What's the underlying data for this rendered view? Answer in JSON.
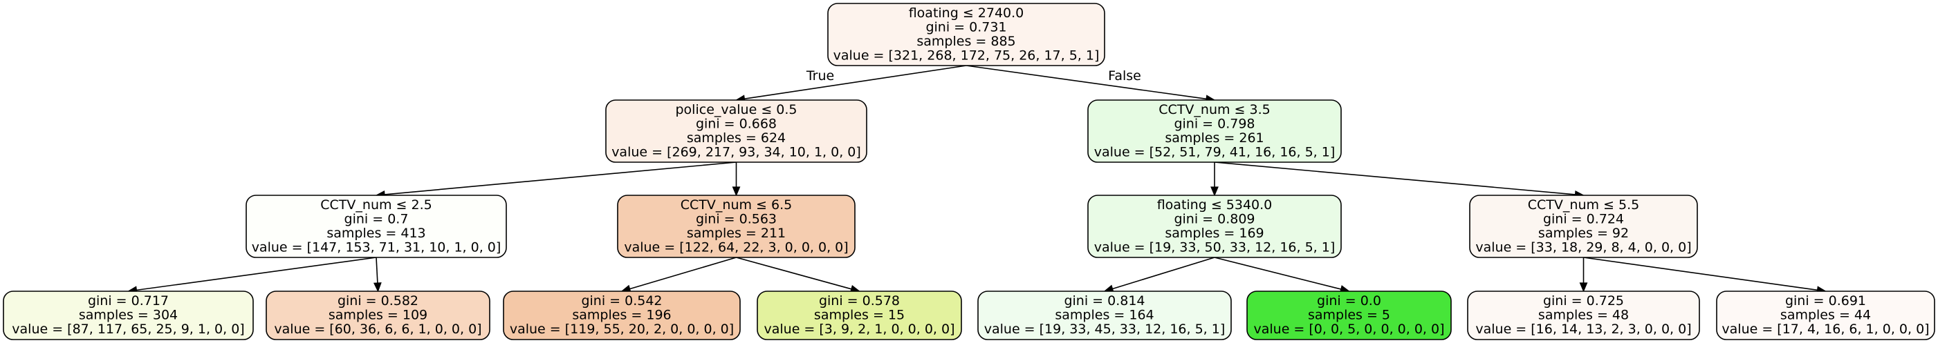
{
  "chart_data": {
    "type": "decision-tree",
    "nodes": [
      {
        "id": 0,
        "lines": [
          "floating ≤ 2740.0",
          "gini = 0.731",
          "samples = 885",
          "value = [321, 268, 172, 75, 26, 17, 5, 1]"
        ],
        "color": "#fdf3ed"
      },
      {
        "id": 1,
        "lines": [
          "police_value ≤ 0.5",
          "gini = 0.668",
          "samples = 624",
          "value = [269, 217, 93, 34, 10, 1, 0, 0]"
        ],
        "color": "#fcefe6"
      },
      {
        "id": 2,
        "lines": [
          "CCTV_num ≤ 3.5",
          "gini = 0.798",
          "samples = 261",
          "value = [52, 51, 79, 41, 16, 16, 5, 1]"
        ],
        "color": "#e6fbe3"
      },
      {
        "id": 3,
        "lines": [
          "CCTV_num ≤ 2.5",
          "gini = 0.7",
          "samples = 413",
          "value = [147, 153, 71, 31, 10, 1, 0, 0]"
        ],
        "color": "#fefffb"
      },
      {
        "id": 4,
        "lines": [
          "CCTV_num ≤ 6.5",
          "gini = 0.563",
          "samples = 211",
          "value = [122, 64, 22, 3, 0, 0, 0, 0]"
        ],
        "color": "#f5cdb0"
      },
      {
        "id": 5,
        "lines": [
          "floating ≤ 5340.0",
          "gini = 0.809",
          "samples = 169",
          "value = [19, 33, 50, 33, 12, 16, 5, 1]"
        ],
        "color": "#e9fbe6"
      },
      {
        "id": 6,
        "lines": [
          "CCTV_num ≤ 5.5",
          "gini = 0.724",
          "samples = 92",
          "value = [33, 18, 29, 8, 4, 0, 0, 0]"
        ],
        "color": "#fcf6f1"
      },
      {
        "id": 7,
        "lines": [
          "gini = 0.717",
          "samples = 304",
          "value = [87, 117, 65, 25, 9, 1, 0, 0]"
        ],
        "color": "#f7fbe3"
      },
      {
        "id": 8,
        "lines": [
          "gini = 0.582",
          "samples = 109",
          "value = [60, 36, 6, 6, 1, 0, 0, 0]"
        ],
        "color": "#f8d7bf"
      },
      {
        "id": 9,
        "lines": [
          "gini = 0.542",
          "samples = 196",
          "value = [119, 55, 20, 2, 0, 0, 0, 0]"
        ],
        "color": "#f4c8a7"
      },
      {
        "id": 10,
        "lines": [
          "gini = 0.578",
          "samples = 15",
          "value = [3, 9, 2, 1, 0, 0, 0, 0]"
        ],
        "color": "#e3f29e"
      },
      {
        "id": 11,
        "lines": [
          "gini = 0.814",
          "samples = 164",
          "value = [19, 33, 45, 33, 12, 16, 5, 1]"
        ],
        "color": "#effcee"
      },
      {
        "id": 12,
        "lines": [
          "gini = 0.0",
          "samples = 5",
          "value = [0, 0, 5, 0, 0, 0, 0, 0]"
        ],
        "color": "#47e539"
      },
      {
        "id": 13,
        "lines": [
          "gini = 0.725",
          "samples = 48",
          "value = [16, 14, 13, 2, 3, 0, 0, 0]"
        ],
        "color": "#fdf8f4"
      },
      {
        "id": 14,
        "lines": [
          "gini = 0.691",
          "samples = 44",
          "value = [17, 4, 16, 6, 1, 0, 0, 0]"
        ],
        "color": "#fef9f6"
      }
    ],
    "edges": [
      {
        "from": 0,
        "to": 1,
        "label": "True"
      },
      {
        "from": 0,
        "to": 2,
        "label": "False"
      },
      {
        "from": 1,
        "to": 3,
        "label": ""
      },
      {
        "from": 1,
        "to": 4,
        "label": ""
      },
      {
        "from": 2,
        "to": 5,
        "label": ""
      },
      {
        "from": 2,
        "to": 6,
        "label": ""
      },
      {
        "from": 3,
        "to": 7,
        "label": ""
      },
      {
        "from": 3,
        "to": 8,
        "label": ""
      },
      {
        "from": 4,
        "to": 9,
        "label": ""
      },
      {
        "from": 4,
        "to": 10,
        "label": ""
      },
      {
        "from": 5,
        "to": 11,
        "label": ""
      },
      {
        "from": 5,
        "to": 12,
        "label": ""
      },
      {
        "from": 6,
        "to": 13,
        "label": ""
      },
      {
        "from": 6,
        "to": 14,
        "label": ""
      }
    ]
  }
}
